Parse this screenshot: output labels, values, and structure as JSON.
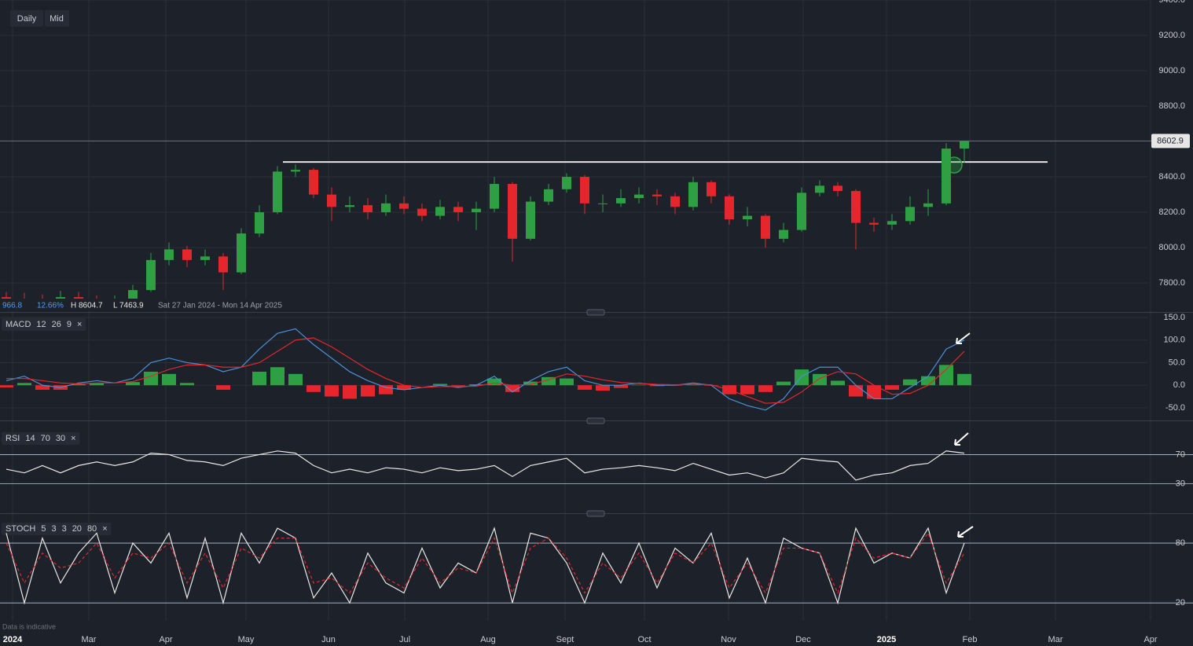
{
  "ui": {
    "buttons": [
      "Daily",
      "Mid"
    ],
    "stats": {
      "change": "966.8",
      "change_pct": "12.66%",
      "high": "H 8604.7",
      "low": "L 7463.9",
      "range": "Sat 27 Jan 2024 - Mon 14 Apr 2025"
    },
    "x_axis": {
      "labels": [
        "2024",
        "Mar",
        "Apr",
        "May",
        "Jun",
        "Jul",
        "Aug",
        "Sept",
        "Oct",
        "Nov",
        "Dec",
        "2025",
        "Feb",
        "Mar",
        "Apr"
      ]
    },
    "close_icon": "×",
    "footer": "Data is indicative"
  },
  "chart_data": [
    {
      "type": "candlestick",
      "up_color": "#2ea043",
      "down_color": "#e5262d",
      "resistance": 8484,
      "resistance_color": "#e6e6e6",
      "ylim": [
        7636,
        9400
      ],
      "yticks": [
        {
          "value": 9400,
          "label": "9400.0"
        },
        {
          "value": 9200,
          "label": "9200.0"
        },
        {
          "value": 9000,
          "label": "9000.0"
        },
        {
          "value": 8800,
          "label": "8800.0"
        },
        {
          "value": 8400,
          "label": "8400.0"
        },
        {
          "value": 8200,
          "label": "8200.0"
        },
        {
          "value": 8000,
          "label": "8000.0"
        },
        {
          "value": 7800,
          "label": "7800.0"
        }
      ],
      "open": [
        7720,
        7711,
        7700,
        7690,
        7720,
        7700,
        7680,
        7700,
        7760,
        7930,
        7990,
        7930,
        7950,
        7860,
        8080,
        8200,
        8430,
        8440,
        8300,
        8230,
        8240,
        8200,
        8250,
        8220,
        8180,
        8230,
        8200,
        8220,
        8360,
        8050,
        8260,
        8330,
        8400,
        8250,
        8250,
        8280,
        8300,
        8290,
        8230,
        8370,
        8290,
        8160,
        8180,
        8050,
        8100,
        8310,
        8350,
        8320,
        8140,
        8130,
        8150,
        8230,
        8250,
        8560
      ],
      "high": [
        7750,
        7745,
        7735,
        7755,
        7750,
        7730,
        7730,
        7790,
        7970,
        8030,
        8010,
        7990,
        7970,
        8110,
        8240,
        8460,
        8470,
        8450,
        8340,
        8290,
        8280,
        8300,
        8290,
        8250,
        8270,
        8260,
        8260,
        8400,
        8370,
        8290,
        8360,
        8420,
        8410,
        8300,
        8330,
        8340,
        8330,
        8310,
        8400,
        8380,
        8300,
        8230,
        8190,
        8140,
        8340,
        8380,
        8370,
        8330,
        8170,
        8190,
        8290,
        8330,
        8590,
        8604.7
      ],
      "low": [
        7680,
        7670,
        7660,
        7660,
        7670,
        7650,
        7660,
        7690,
        7750,
        7900,
        7890,
        7900,
        7760,
        7850,
        8060,
        8190,
        8400,
        8280,
        8150,
        8200,
        8160,
        8180,
        8190,
        8150,
        8160,
        8150,
        8100,
        8200,
        7920,
        8040,
        8240,
        8310,
        8190,
        8200,
        8230,
        8250,
        8240,
        8190,
        8210,
        8250,
        8130,
        8120,
        8000,
        8030,
        8090,
        8290,
        8290,
        7990,
        8090,
        8100,
        8130,
        8180,
        8240,
        8480
      ],
      "close": [
        7711,
        7700,
        7690,
        7720,
        7700,
        7680,
        7700,
        7760,
        7930,
        7990,
        7930,
        7950,
        7860,
        8080,
        8200,
        8430,
        8440,
        8300,
        8230,
        8240,
        8200,
        8250,
        8220,
        8180,
        8230,
        8200,
        8220,
        8360,
        8050,
        8260,
        8330,
        8400,
        8250,
        8250,
        8280,
        8300,
        8290,
        8230,
        8370,
        8290,
        8160,
        8180,
        8050,
        8100,
        8310,
        8350,
        8320,
        8140,
        8130,
        8150,
        8230,
        8250,
        8560,
        8602.9
      ]
    },
    {
      "type": "macd",
      "label": "MACD",
      "params": [
        12,
        26,
        9
      ],
      "ylim": [
        -78,
        157
      ],
      "yticks": [
        {
          "value": 150,
          "label": "150.0"
        },
        {
          "value": 100,
          "label": "100.0"
        },
        {
          "value": 50,
          "label": "50.0"
        },
        {
          "value": 0,
          "label": "0.0"
        },
        {
          "value": -50,
          "label": "-50.0"
        }
      ],
      "series": [
        {
          "color": "#4a90d9",
          "values": [
            10,
            20,
            0,
            -5,
            5,
            10,
            5,
            15,
            50,
            60,
            50,
            45,
            30,
            40,
            80,
            115,
            125,
            90,
            60,
            30,
            10,
            -5,
            -10,
            -5,
            0,
            -5,
            0,
            20,
            -15,
            10,
            30,
            40,
            10,
            0,
            0,
            5,
            0,
            0,
            5,
            0,
            -30,
            -45,
            -55,
            -30,
            20,
            40,
            40,
            0,
            -30,
            -30,
            -5,
            20,
            80,
            100
          ]
        },
        {
          "color": "#e5262d",
          "values": [
            15,
            15,
            10,
            5,
            3,
            5,
            5,
            8,
            20,
            35,
            45,
            45,
            40,
            40,
            50,
            75,
            100,
            105,
            85,
            60,
            35,
            15,
            0,
            -5,
            -3,
            -3,
            -2,
            5,
            0,
            2,
            12,
            25,
            20,
            12,
            6,
            4,
            2,
            1,
            2,
            1,
            -10,
            -25,
            -40,
            -38,
            -15,
            15,
            30,
            25,
            0,
            -20,
            -18,
            0,
            35,
            75
          ]
        }
      ],
      "histogram": {
        "up_color": "#2ea043",
        "down_color": "#e5262d",
        "values": [
          -5,
          5,
          -10,
          -10,
          2,
          5,
          0,
          7,
          30,
          25,
          5,
          0,
          -10,
          0,
          30,
          40,
          25,
          -15,
          -25,
          -30,
          -25,
          -20,
          -10,
          0,
          3,
          -2,
          2,
          15,
          -15,
          8,
          18,
          15,
          -10,
          -12,
          -6,
          1,
          -2,
          -1,
          3,
          -1,
          -20,
          -20,
          -15,
          8,
          35,
          25,
          10,
          -25,
          -30,
          -10,
          13,
          20,
          45,
          25
        ]
      }
    },
    {
      "type": "line",
      "label": "RSI",
      "params": [
        14,
        70,
        30
      ],
      "ylim": [
        -7,
        106
      ],
      "yticks": [
        70,
        30
      ],
      "level_color": "#b8c4d6",
      "series": [
        {
          "color": "#e8e8e8",
          "values": [
            50,
            45,
            55,
            45,
            55,
            60,
            55,
            60,
            72,
            70,
            62,
            60,
            55,
            65,
            70,
            75,
            72,
            55,
            45,
            50,
            45,
            52,
            50,
            45,
            52,
            48,
            50,
            55,
            40,
            55,
            60,
            65,
            45,
            50,
            52,
            55,
            52,
            48,
            58,
            50,
            42,
            45,
            38,
            45,
            65,
            62,
            60,
            35,
            42,
            45,
            55,
            58,
            75,
            72
          ]
        }
      ]
    },
    {
      "type": "line",
      "label": "STOCH",
      "params": [
        5,
        3,
        3,
        20,
        80
      ],
      "ylim": [
        2,
        104.5
      ],
      "yticks": [
        80,
        20
      ],
      "level_color": "#b8c4d6",
      "series": [
        {
          "color": "#e8e8e8",
          "values": [
            90,
            20,
            85,
            40,
            70,
            90,
            30,
            80,
            60,
            90,
            25,
            85,
            20,
            90,
            60,
            95,
            85,
            25,
            50,
            20,
            70,
            40,
            30,
            75,
            35,
            60,
            50,
            95,
            20,
            90,
            85,
            60,
            20,
            70,
            40,
            80,
            35,
            75,
            60,
            90,
            25,
            65,
            20,
            85,
            75,
            70,
            20,
            95,
            60,
            70,
            65,
            95,
            30,
            80
          ]
        },
        {
          "color": "#e5262d",
          "dash": true,
          "values": [
            80,
            40,
            70,
            55,
            60,
            80,
            45,
            70,
            65,
            80,
            40,
            70,
            35,
            75,
            65,
            85,
            85,
            40,
            45,
            30,
            60,
            45,
            35,
            65,
            40,
            55,
            50,
            85,
            30,
            75,
            85,
            65,
            30,
            60,
            45,
            70,
            40,
            70,
            60,
            80,
            35,
            60,
            30,
            75,
            75,
            70,
            30,
            85,
            65,
            70,
            65,
            90,
            40,
            70
          ]
        }
      ]
    }
  ]
}
